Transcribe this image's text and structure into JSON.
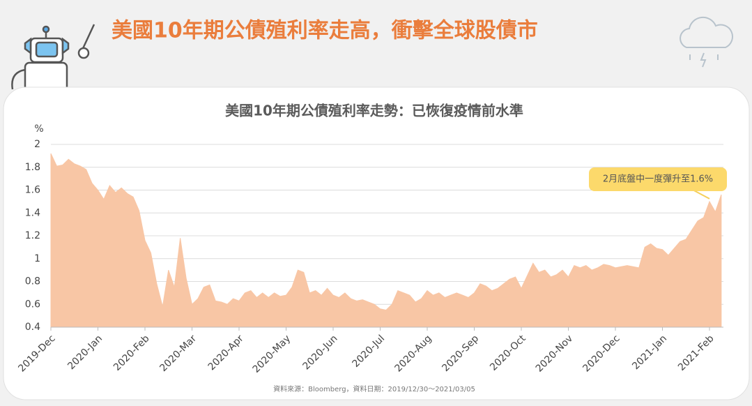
{
  "heading": "美國10年期公債殖利率走高，衝擊全球股債市",
  "chart_data": {
    "type": "area",
    "title": "美國10年期公債殖利率走勢：已恢復疫情前水準",
    "y_unit": "%",
    "annotation": "2月底盤中一度彈升至1.6%",
    "source": "資料來源：Bloomberg，資料日期：2019/12/30～2021/03/05",
    "color": "#f8c6a5",
    "grid": true,
    "ylim": [
      0.4,
      2
    ],
    "yticks": [
      0.4,
      0.6,
      0.8,
      1,
      1.2,
      1.4,
      1.6,
      1.8,
      2
    ],
    "categories": [
      "2019-Dec",
      "2020-Jan",
      "2020-Feb",
      "2020-Mar",
      "2020-Apr",
      "2020-May",
      "2020-Jun",
      "2020-Jul",
      "2020-Aug",
      "2020-Sep",
      "2020-Oct",
      "2020-Nov",
      "2020-Dec",
      "2021-Jan",
      "2021-Feb"
    ],
    "values": [
      [
        1.92,
        1.81,
        1.82,
        1.87,
        1.83,
        1.81,
        1.78,
        1.66
      ],
      [
        1.6,
        1.52,
        1.64,
        1.58,
        1.62,
        1.57,
        1.54,
        1.42
      ],
      [
        1.16,
        1.05,
        0.78,
        0.58,
        0.9,
        0.75,
        1.18,
        0.83
      ],
      [
        0.6,
        0.65,
        0.75,
        0.77,
        0.63,
        0.62,
        0.6,
        0.65
      ],
      [
        0.63,
        0.7,
        0.72,
        0.66,
        0.7,
        0.66,
        0.7,
        0.67
      ],
      [
        0.68,
        0.75,
        0.9,
        0.88,
        0.7,
        0.72,
        0.68,
        0.74
      ],
      [
        0.68,
        0.66,
        0.7,
        0.65,
        0.63,
        0.64,
        0.62,
        0.6
      ],
      [
        0.56,
        0.55,
        0.6,
        0.72,
        0.7,
        0.68,
        0.62,
        0.65
      ],
      [
        0.72,
        0.68,
        0.7,
        0.66,
        0.68,
        0.7,
        0.68,
        0.66
      ],
      [
        0.7,
        0.78,
        0.76,
        0.72,
        0.74,
        0.78,
        0.82,
        0.84
      ],
      [
        0.74,
        0.85,
        0.96,
        0.88,
        0.9,
        0.84,
        0.86,
        0.9
      ],
      [
        0.84,
        0.94,
        0.92,
        0.94,
        0.9,
        0.92,
        0.95,
        0.94
      ],
      [
        0.92,
        0.93,
        0.94,
        0.93,
        0.92,
        1.1,
        1.13,
        1.09
      ],
      [
        1.08,
        1.03,
        1.09,
        1.15,
        1.17,
        1.25,
        1.33,
        1.36
      ],
      [
        1.5,
        1.41,
        1.56
      ]
    ]
  }
}
